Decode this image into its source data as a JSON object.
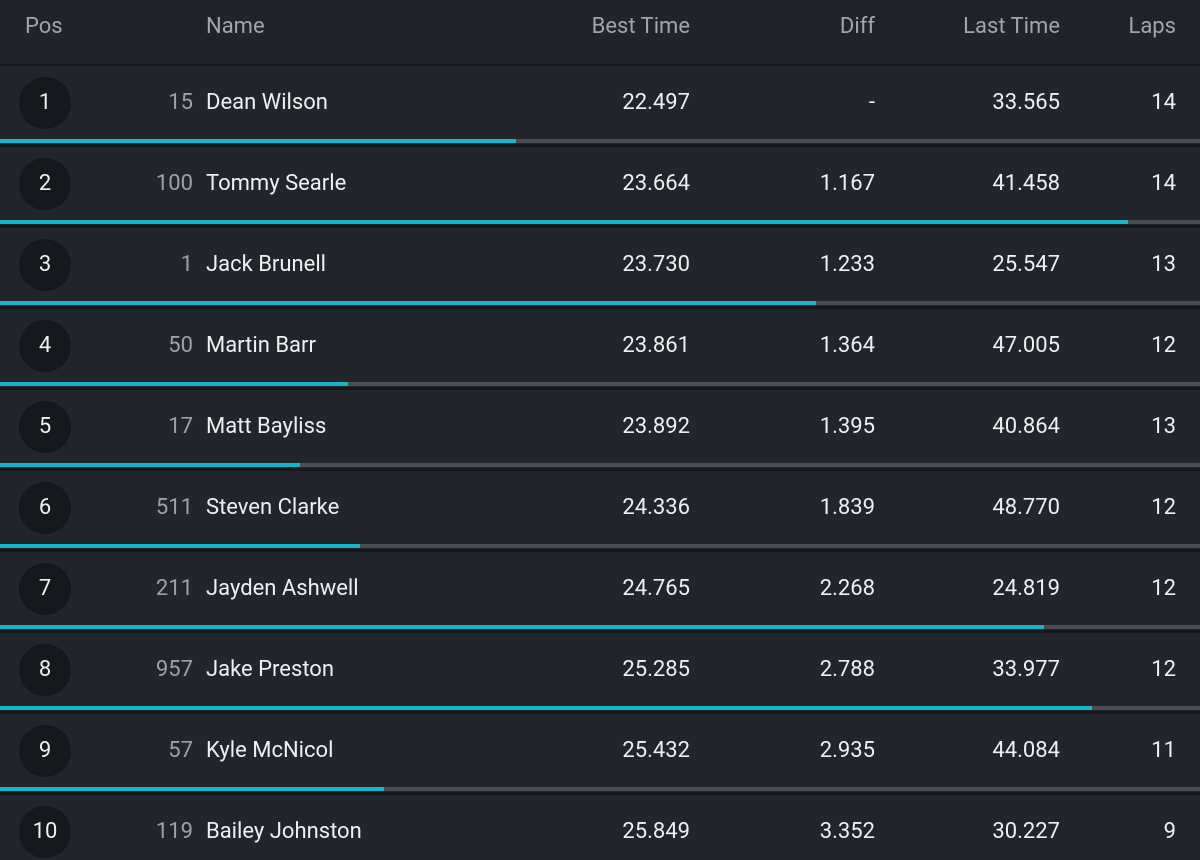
{
  "header": {
    "columns": [
      "Pos",
      "Name",
      "Best Time",
      "Diff",
      "Last Time",
      "Laps"
    ]
  },
  "rows": [
    {
      "pos": "1",
      "number": "15",
      "name": "Dean Wilson",
      "best": "22.497",
      "diff": "-",
      "last": "33.565",
      "laps": "14",
      "progress": 43
    },
    {
      "pos": "2",
      "number": "100",
      "name": "Tommy Searle",
      "best": "23.664",
      "diff": "1.167",
      "last": "41.458",
      "laps": "14",
      "progress": 94
    },
    {
      "pos": "3",
      "number": "1",
      "name": "Jack Brunell",
      "best": "23.730",
      "diff": "1.233",
      "last": "25.547",
      "laps": "13",
      "progress": 68
    },
    {
      "pos": "4",
      "number": "50",
      "name": "Martin Barr",
      "best": "23.861",
      "diff": "1.364",
      "last": "47.005",
      "laps": "12",
      "progress": 29
    },
    {
      "pos": "5",
      "number": "17",
      "name": "Matt Bayliss",
      "best": "23.892",
      "diff": "1.395",
      "last": "40.864",
      "laps": "13",
      "progress": 25
    },
    {
      "pos": "6",
      "number": "511",
      "name": "Steven Clarke",
      "best": "24.336",
      "diff": "1.839",
      "last": "48.770",
      "laps": "12",
      "progress": 30
    },
    {
      "pos": "7",
      "number": "211",
      "name": "Jayden Ashwell",
      "best": "24.765",
      "diff": "2.268",
      "last": "24.819",
      "laps": "12",
      "progress": 87
    },
    {
      "pos": "8",
      "number": "957",
      "name": "Jake Preston",
      "best": "25.285",
      "diff": "2.788",
      "last": "33.977",
      "laps": "12",
      "progress": 91
    },
    {
      "pos": "9",
      "number": "57",
      "name": "Kyle McNicol",
      "best": "25.432",
      "diff": "2.935",
      "last": "44.084",
      "laps": "11",
      "progress": 32
    },
    {
      "pos": "10",
      "number": "119",
      "name": "Bailey Johnston",
      "best": "25.849",
      "diff": "3.352",
      "last": "30.227",
      "laps": "9",
      "progress": null
    }
  ]
}
